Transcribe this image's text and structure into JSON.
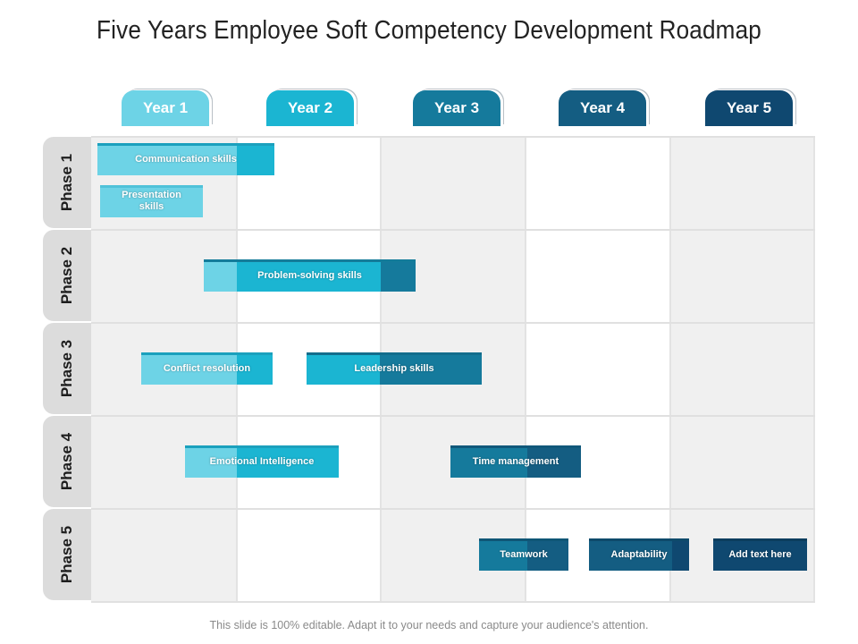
{
  "title": "Five Years Employee Soft Competency Development Roadmap",
  "years": [
    "Year 1",
    "Year 2",
    "Year 3",
    "Year 4",
    "Year 5"
  ],
  "phases": [
    "Phase 1",
    "Phase 2",
    "Phase 3",
    "Phase 4",
    "Phase 5"
  ],
  "skills": {
    "communication": "Communication skills",
    "presentation": "Presentation skills",
    "problem_solving": "Problem-solving skills",
    "conflict": "Conflict resolution",
    "leadership": "Leadership skills",
    "emotional": "Emotional Intelligence",
    "time": "Time management",
    "teamwork": "Teamwork",
    "adaptability": "Adaptability",
    "add_text": "Add text here"
  },
  "colors": {
    "year1": "#6dd3e6",
    "year2": "#1bb5d2",
    "year3": "#157a9c",
    "year4": "#145d82",
    "year5": "#0f4870",
    "column_grey": "#f0f0f0",
    "phase_tab": "#dcdcdc"
  },
  "footer": "This slide is 100% editable. Adapt it to your needs and capture your audience's attention."
}
